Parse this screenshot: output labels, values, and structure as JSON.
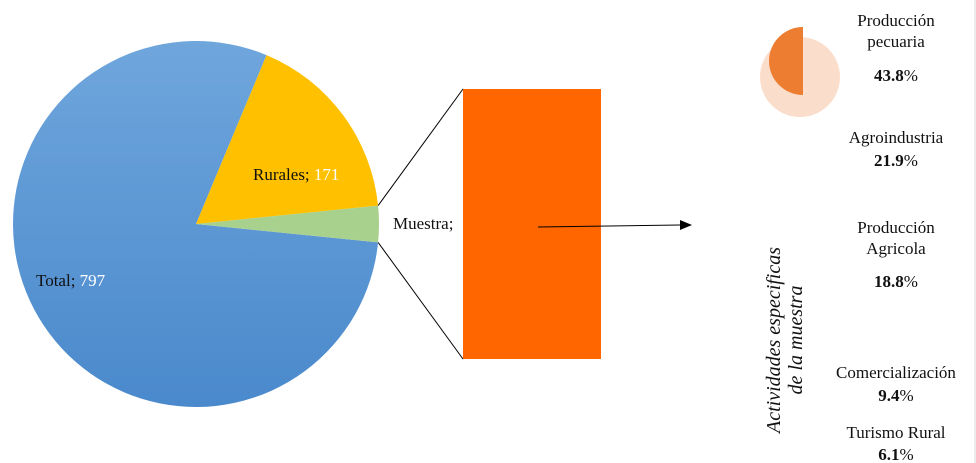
{
  "chart_data": [
    {
      "type": "pie",
      "slices": [
        {
          "label": "Total",
          "value": 797,
          "color": "#5b9bd5"
        },
        {
          "label": "Rurales",
          "value": 171,
          "color": "#ffc000"
        },
        {
          "label": "Muestra",
          "value": 32,
          "color": "#a9d18e"
        }
      ],
      "label_separator": "; ",
      "value_color": "#ffffff"
    },
    {
      "type": "bar",
      "stacked": true,
      "ylabel": "Actividades especificas de la muestra",
      "bar_color": "#ff6600",
      "categories": [
        {
          "name": "Producción pecuaria",
          "value": 43.8,
          "value_text": "43.8"
        },
        {
          "name": "Agroindustria",
          "value": 21.9,
          "value_text": "21.9"
        },
        {
          "name": "Producción Agricola",
          "value": 18.8,
          "value_text": "18.8"
        },
        {
          "name": "Comercialización",
          "value": 9.4,
          "value_text": "9.4"
        },
        {
          "name": "Turismo Rural",
          "value": 6.1,
          "value_text": "6.1"
        }
      ],
      "unit": "%",
      "legend_marker_colors": [
        "#ed7d31",
        "#f8cbad"
      ]
    }
  ]
}
